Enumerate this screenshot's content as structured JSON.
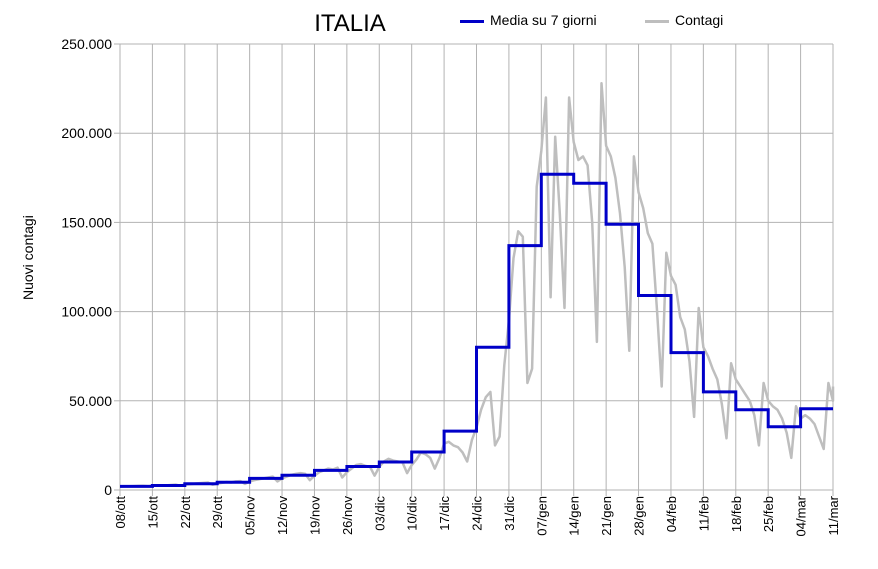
{
  "chart_data": {
    "type": "line",
    "title": "ITALIA",
    "ylabel": "Nuovi contagi",
    "xlabel": "",
    "ylim": [
      0,
      250000
    ],
    "y_ticks": [
      "0",
      "50.000",
      "100.000",
      "150.000",
      "200.000",
      "250.000"
    ],
    "y_tick_values": [
      0,
      50000,
      100000,
      150000,
      200000,
      250000
    ],
    "x_tick_labels": [
      "08/ott",
      "15/ott",
      "22/ott",
      "29/ott",
      "05/nov",
      "12/nov",
      "19/nov",
      "26/nov",
      "03/dic",
      "10/dic",
      "17/dic",
      "24/dic",
      "31/dic",
      "07/gen",
      "14/gen",
      "21/gen",
      "28/gen",
      "04/feb",
      "11/feb",
      "18/feb",
      "25/feb",
      "04/mar",
      "11/mar"
    ],
    "grid": "vertical and horizontal",
    "legend_position": "top-right",
    "series": [
      {
        "name": "Media su 7 giorni",
        "color": "#0000c8",
        "style": "step",
        "week_start_labels": [
          "08/ott",
          "15/ott",
          "22/ott",
          "29/ott",
          "05/nov",
          "12/nov",
          "19/nov",
          "26/nov",
          "03/dic",
          "10/dic",
          "17/dic",
          "24/dic",
          "31/dic",
          "07/gen",
          "14/gen",
          "21/gen",
          "28/gen",
          "04/feb",
          "11/feb",
          "18/feb",
          "25/feb",
          "04/mar"
        ],
        "values": [
          2000,
          2500,
          3500,
          4300,
          6500,
          8300,
          11000,
          13200,
          15700,
          21300,
          33000,
          80000,
          137000,
          177000,
          172000,
          149000,
          109000,
          77000,
          55000,
          45000,
          35500,
          45500
        ]
      },
      {
        "name": "Contagi",
        "color": "#bebebe",
        "style": "line",
        "daily_from": "08/ott",
        "values": [
          1800,
          2000,
          2100,
          2200,
          2300,
          2400,
          2200,
          2300,
          2500,
          2700,
          2600,
          2800,
          3000,
          2400,
          3000,
          3200,
          3500,
          3800,
          4000,
          4200,
          2900,
          3600,
          4000,
          4500,
          4200,
          4800,
          5000,
          3400,
          4800,
          5500,
          6000,
          6500,
          7000,
          7500,
          4800,
          6500,
          7500,
          8500,
          9000,
          9500,
          9000,
          5500,
          8000,
          10000,
          11000,
          12000,
          11500,
          12500,
          7000,
          10000,
          12000,
          14000,
          14500,
          13500,
          13000,
          8000,
          13000,
          16000,
          17500,
          16500,
          16000,
          15500,
          9500,
          14000,
          17000,
          21000,
          20000,
          18000,
          12000,
          18000,
          26000,
          27000,
          25000,
          24000,
          21000,
          16000,
          28000,
          35000,
          45000,
          52000,
          55000,
          25000,
          30000,
          70000,
          95000,
          130000,
          145000,
          142000,
          60000,
          68000,
          170000,
          190000,
          220000,
          108000,
          198000,
          155000,
          102000,
          220000,
          195000,
          185000,
          187000,
          182000,
          150000,
          83000,
          228000,
          193000,
          187000,
          175000,
          155000,
          125000,
          78000,
          187000,
          167000,
          158000,
          144000,
          138000,
          100000,
          58000,
          133000,
          120000,
          115000,
          97000,
          90000,
          72000,
          41000,
          102000,
          80000,
          75000,
          68000,
          62000,
          48000,
          29000,
          71000,
          62000,
          58000,
          54000,
          50000,
          42000,
          25000,
          60000,
          50000,
          47000,
          45000,
          40000,
          32000,
          18000,
          47000,
          40000,
          42000,
          40000,
          37000,
          30000,
          23000,
          60000,
          50000,
          55000,
          58000
        ]
      }
    ]
  }
}
